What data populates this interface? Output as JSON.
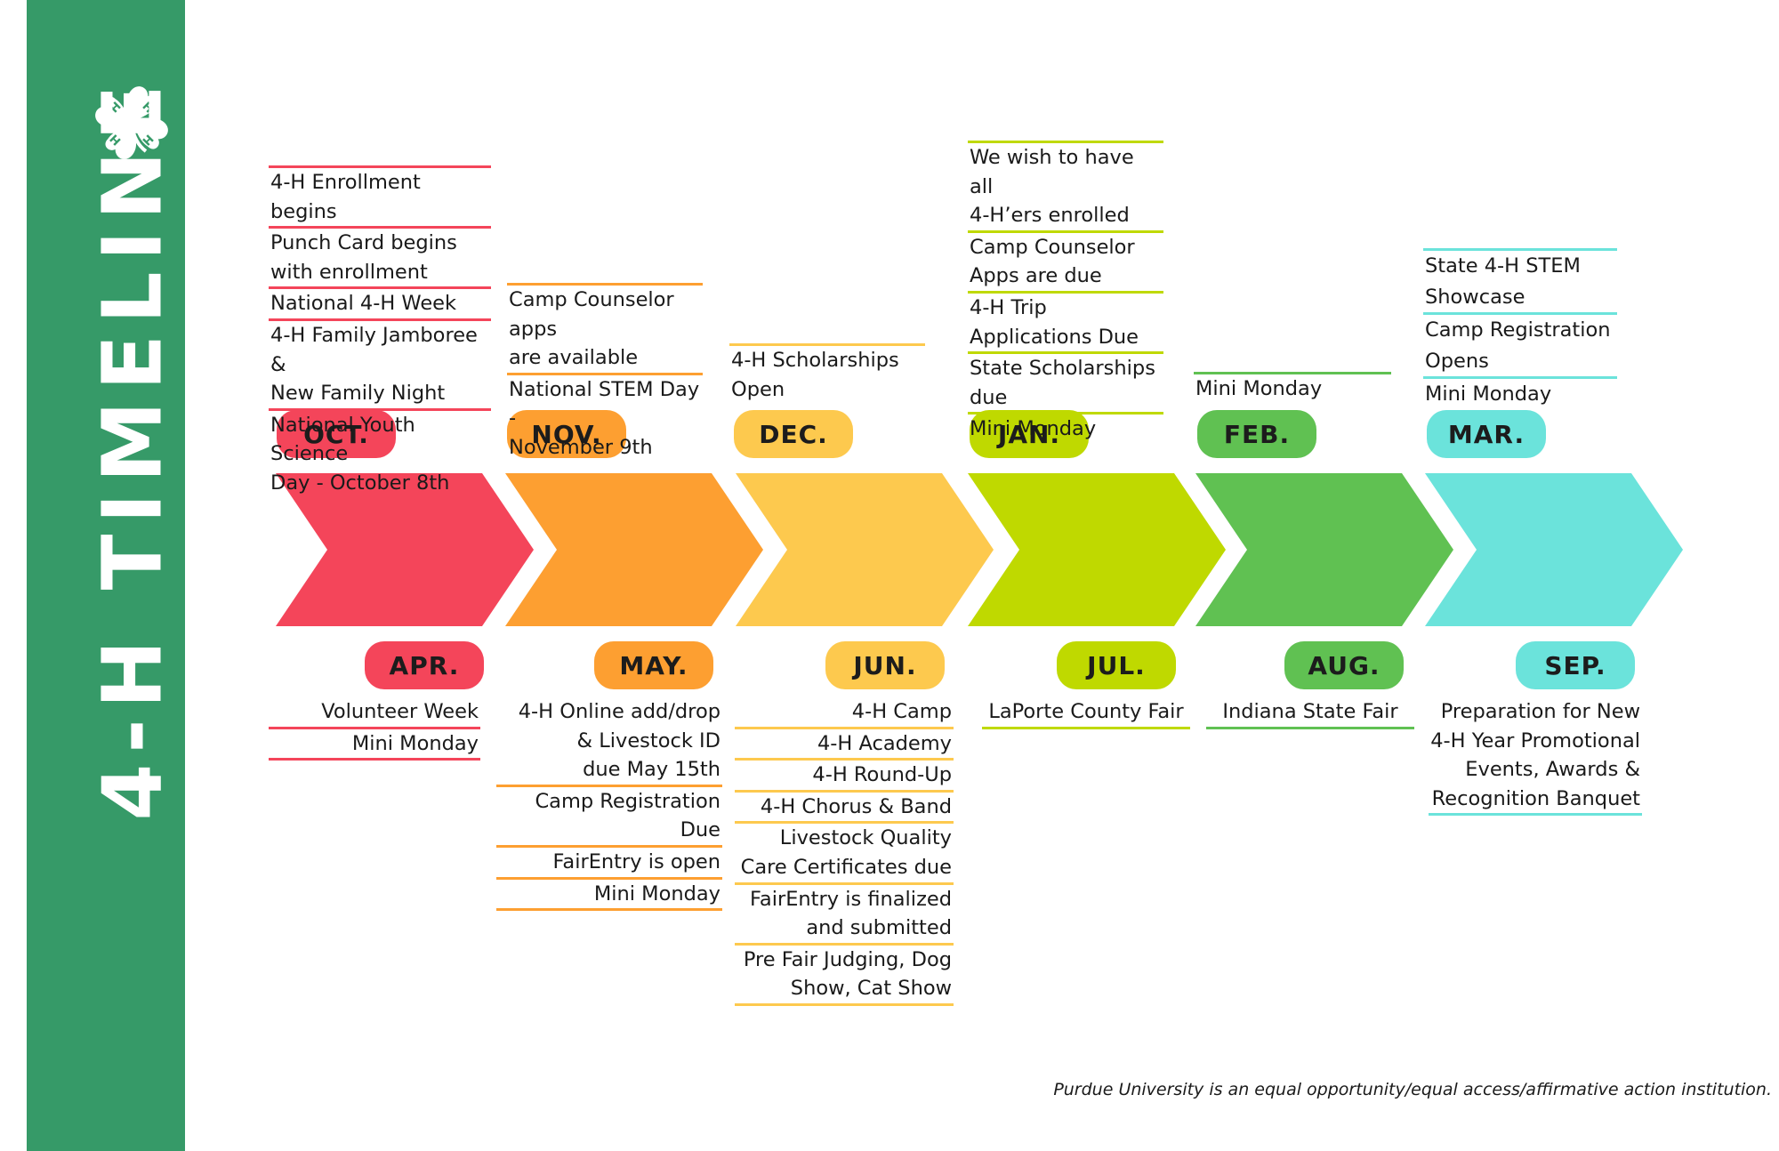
{
  "title": "4-H TIMELINE",
  "clover_letters": [
    "H",
    "H",
    "H",
    "H"
  ],
  "footer": "Purdue University is an equal opportunity/equal access/affirmative action institution.",
  "colors": {
    "sidebar": "#369a68",
    "oct": "#f4455a",
    "nov": "#fd9f31",
    "dec": "#fdc94e",
    "jan": "#bfd900",
    "feb": "#60c152",
    "mar": "#6be3db"
  },
  "top_months": [
    {
      "label": "OCT.",
      "events": [
        "4-H Enrollment begins",
        "Punch Card begins\nwith enrollment",
        "National 4-H Week",
        "4-H Family Jamboree &\nNew Family Night",
        "National Youth Science\nDay - October 8th"
      ]
    },
    {
      "label": "NOV.",
      "events": [
        "Camp Counselor apps\nare available",
        "National STEM Day -\nNovember 9th"
      ]
    },
    {
      "label": "DEC.",
      "events": [
        "4-H Scholarships\nOpen"
      ]
    },
    {
      "label": "JAN.",
      "events": [
        "We wish to have all\n4-H’ers enrolled",
        "Camp Counselor\nApps are due",
        "4-H Trip\nApplications Due",
        "State Scholarships\ndue",
        "Mini Monday"
      ]
    },
    {
      "label": "FEB.",
      "events": [
        "Mini Monday"
      ]
    },
    {
      "label": "MAR.",
      "events": [
        "State 4-H STEM\nShowcase",
        "Camp Registration\nOpens",
        "Mini Monday"
      ]
    }
  ],
  "bottom_months": [
    {
      "label": "APR.",
      "events": [
        "Volunteer Week",
        "Mini Monday"
      ]
    },
    {
      "label": "MAY.",
      "events": [
        "4-H Online add/drop\n& Livestock ID\ndue May 15th",
        "Camp Registration Due",
        "FairEntry is open",
        "Mini Monday"
      ]
    },
    {
      "label": "JUN.",
      "events": [
        "4-H Camp",
        "4-H Academy",
        "4-H Round-Up",
        "4-H Chorus & Band",
        "Livestock Quality\nCare Certificates due",
        "FairEntry is finalized\nand submitted",
        "Pre Fair Judging, Dog\nShow, Cat Show"
      ]
    },
    {
      "label": "JUL.",
      "events": [
        "LaPorte County Fair"
      ]
    },
    {
      "label": "AUG.",
      "events": [
        "Indiana State Fair"
      ]
    },
    {
      "label": "SEP.",
      "events": [
        "Preparation for New\n4-H Year Promotional\nEvents, Awards &\nRecognition Banquet"
      ]
    }
  ]
}
